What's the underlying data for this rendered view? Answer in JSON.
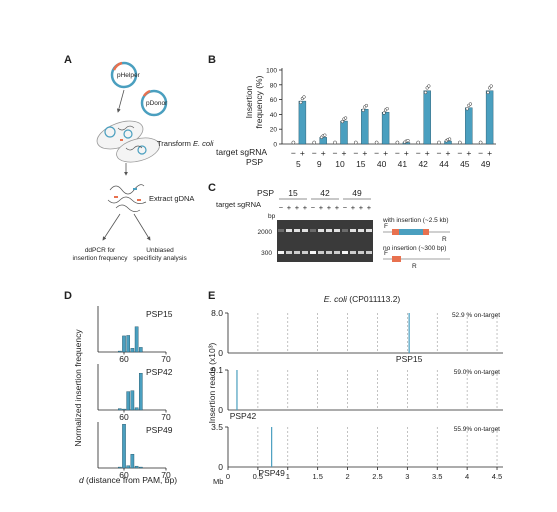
{
  "panel_labels": {
    "a": "A",
    "b": "B",
    "c": "C",
    "d": "D",
    "e": "E"
  },
  "panel_a": {
    "phelper": "pHelper",
    "pdonor": "pDonor",
    "transform_prefix": "Transform ",
    "transform_species": "E. coli",
    "extract": "Extract gDNA",
    "ddpcr_line1": "ddPCR for",
    "ddpcr_line2": "insertion frequency",
    "unbiased_line1": "Unbiased",
    "unbiased_line2": "specificity analysis"
  },
  "panel_b": {
    "ylabel_line1": "Insertion",
    "ylabel_line2": "frequency (%)",
    "row_label_sgrna": "target sgRNA",
    "row_label_psp": "PSP",
    "minus": "−",
    "plus": "+"
  },
  "panel_c": {
    "psp_label": "PSP",
    "sgrna_label": "target sgRNA",
    "bp_label": "bp",
    "psp_groups": [
      "15",
      "42",
      "49"
    ],
    "lane_signs": [
      "−",
      "+",
      "+",
      "+",
      "−",
      "+",
      "+",
      "+",
      "−",
      "+",
      "+",
      "+"
    ],
    "ladder": [
      "2000",
      "300"
    ],
    "with_insertion": "with insertion (~2.5 kb)",
    "no_insertion": "no insertion (~300 bp)",
    "primer_f": "F",
    "primer_r": "R"
  },
  "panel_d": {
    "ylabel": "Normalized insertion frequency",
    "xlabel_var": "d",
    "xlabel_rest": " (distance from PAM, bp)",
    "x_ticks": [
      "60",
      "70"
    ],
    "subplot_labels": [
      "PSP15",
      "PSP42",
      "PSP49"
    ]
  },
  "panel_e": {
    "title_species": "E. coli",
    "title_rest": " (CP011113.2)",
    "ylabel": "Insertion reads (x10³)",
    "xunit": "Mb",
    "x_ticks": [
      "0",
      "0.5",
      "1",
      "1.5",
      "2",
      "2.5",
      "3",
      "3.5",
      "4",
      "4.5"
    ],
    "rows": [
      {
        "ymax": "8.0",
        "on_target": "52.9 % on-target",
        "label": "PSP15"
      },
      {
        "ymax": "9.1",
        "on_target": "59.0% on-target",
        "label": "PSP42"
      },
      {
        "ymax": "3.5",
        "on_target": "55.9% on-target",
        "label": "PSP49"
      }
    ]
  },
  "colors": {
    "bar": "#4a9fbf",
    "gel": "#3a3a3a",
    "tn_orange": "#e8714f",
    "cargo_blue": "#4a9fbf"
  },
  "chart_data": [
    {
      "type": "bar",
      "title": "",
      "ylabel": "Insertion frequency (%)",
      "ylim": [
        0,
        100
      ],
      "y_ticks": [
        0,
        20,
        40,
        60,
        80,
        100
      ],
      "categories": [
        "5",
        "9",
        "10",
        "15",
        "40",
        "41",
        "42",
        "44",
        "45",
        "49"
      ],
      "series": [
        {
          "name": "−",
          "values": [
            0,
            0,
            0,
            0,
            0,
            0,
            0,
            0,
            0,
            0
          ]
        },
        {
          "name": "+",
          "values": [
            58,
            9,
            31,
            47,
            43,
            2,
            72,
            4,
            49,
            72
          ]
        }
      ]
    },
    {
      "type": "bar",
      "title": "PSP15",
      "xlabel": "d (distance from PAM, bp)",
      "ylabel": "Normalized insertion frequency",
      "x": [
        59,
        60,
        61,
        62,
        63,
        64
      ],
      "values": [
        0.02,
        0.35,
        0.36,
        0.08,
        0.55,
        0.1
      ]
    },
    {
      "type": "bar",
      "title": "PSP42",
      "xlabel": "d (distance from PAM, bp)",
      "ylabel": "Normalized insertion frequency",
      "x": [
        59,
        60,
        61,
        62,
        63,
        64
      ],
      "values": [
        0.03,
        0.02,
        0.4,
        0.42,
        0.05,
        0.8
      ]
    },
    {
      "type": "bar",
      "title": "PSP49",
      "xlabel": "d (distance from PAM, bp)",
      "ylabel": "Normalized insertion frequency",
      "x": [
        59,
        60,
        61,
        62,
        63,
        64
      ],
      "values": [
        0.02,
        0.95,
        0.05,
        0.3,
        0.04,
        0.02
      ]
    },
    {
      "type": "bar",
      "title": "E. coli (CP011113.2)",
      "xlabel": "Mb",
      "ylabel": "Insertion reads (x10³)",
      "series": [
        {
          "name": "PSP15",
          "x": [
            3.03
          ],
          "values": [
            8.0
          ],
          "ylim": [
            0,
            8.0
          ]
        },
        {
          "name": "PSP42",
          "x": [
            0.15
          ],
          "values": [
            9.1
          ],
          "ylim": [
            0,
            9.1
          ]
        },
        {
          "name": "PSP49",
          "x": [
            0.73
          ],
          "values": [
            3.5
          ],
          "ylim": [
            0,
            3.5
          ]
        }
      ]
    }
  ]
}
